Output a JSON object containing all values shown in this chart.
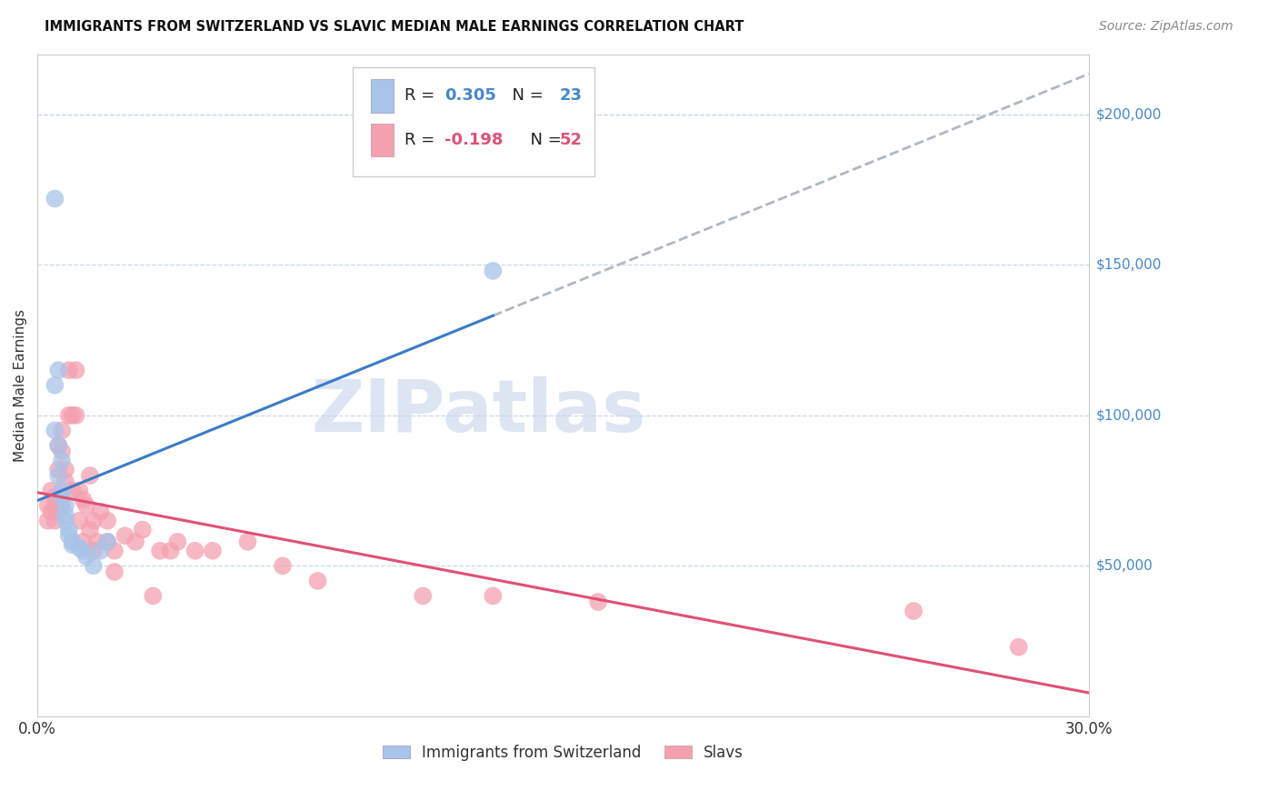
{
  "title": "IMMIGRANTS FROM SWITZERLAND VS SLAVIC MEDIAN MALE EARNINGS CORRELATION CHART",
  "source": "Source: ZipAtlas.com",
  "ylabel": "Median Male Earnings",
  "y_ticks": [
    50000,
    100000,
    150000,
    200000
  ],
  "y_tick_labels": [
    "$50,000",
    "$100,000",
    "$150,000",
    "$200,000"
  ],
  "xlim": [
    0.0,
    0.3
  ],
  "ylim": [
    0,
    220000
  ],
  "legend1_r_label": "R = ",
  "legend1_r_val": "0.305",
  "legend1_n_label": "N = ",
  "legend1_n_val": "23",
  "legend2_r_label": "R = ",
  "legend2_r_val": "-0.198",
  "legend2_n_label": "N = ",
  "legend2_n_val": "52",
  "swiss_color": "#a8c4e8",
  "slavic_color": "#f4a0b0",
  "swiss_line_color": "#3a7bc8",
  "slavic_line_color": "#e05075",
  "trend_ext_color": "#b0b8c0",
  "watermark": "ZIPatlas",
  "watermark_color": "#c5d5e8",
  "swiss_x": [
    0.005,
    0.006,
    0.005,
    0.005,
    0.006,
    0.007,
    0.006,
    0.007,
    0.007,
    0.008,
    0.008,
    0.008,
    0.009,
    0.009,
    0.01,
    0.01,
    0.012,
    0.013,
    0.014,
    0.016,
    0.018,
    0.02,
    0.13
  ],
  "swiss_y": [
    172000,
    115000,
    110000,
    95000,
    90000,
    85000,
    80000,
    75000,
    73000,
    70000,
    67000,
    65000,
    62000,
    60000,
    58000,
    57000,
    56000,
    55000,
    53000,
    50000,
    55000,
    58000,
    148000
  ],
  "slavic_x": [
    0.003,
    0.003,
    0.004,
    0.004,
    0.005,
    0.005,
    0.005,
    0.006,
    0.006,
    0.007,
    0.007,
    0.007,
    0.008,
    0.008,
    0.009,
    0.009,
    0.01,
    0.01,
    0.011,
    0.011,
    0.012,
    0.012,
    0.013,
    0.013,
    0.014,
    0.015,
    0.015,
    0.016,
    0.016,
    0.017,
    0.018,
    0.02,
    0.02,
    0.022,
    0.022,
    0.025,
    0.028,
    0.03,
    0.033,
    0.035,
    0.038,
    0.04,
    0.045,
    0.05,
    0.06,
    0.07,
    0.08,
    0.11,
    0.13,
    0.16,
    0.25,
    0.28
  ],
  "slavic_y": [
    70000,
    65000,
    75000,
    68000,
    73000,
    70000,
    65000,
    90000,
    82000,
    95000,
    88000,
    70000,
    78000,
    82000,
    115000,
    100000,
    100000,
    75000,
    115000,
    100000,
    75000,
    65000,
    72000,
    58000,
    70000,
    80000,
    62000,
    65000,
    55000,
    58000,
    68000,
    65000,
    58000,
    55000,
    48000,
    60000,
    58000,
    62000,
    40000,
    55000,
    55000,
    58000,
    55000,
    55000,
    58000,
    50000,
    45000,
    40000,
    40000,
    38000,
    35000,
    23000
  ]
}
